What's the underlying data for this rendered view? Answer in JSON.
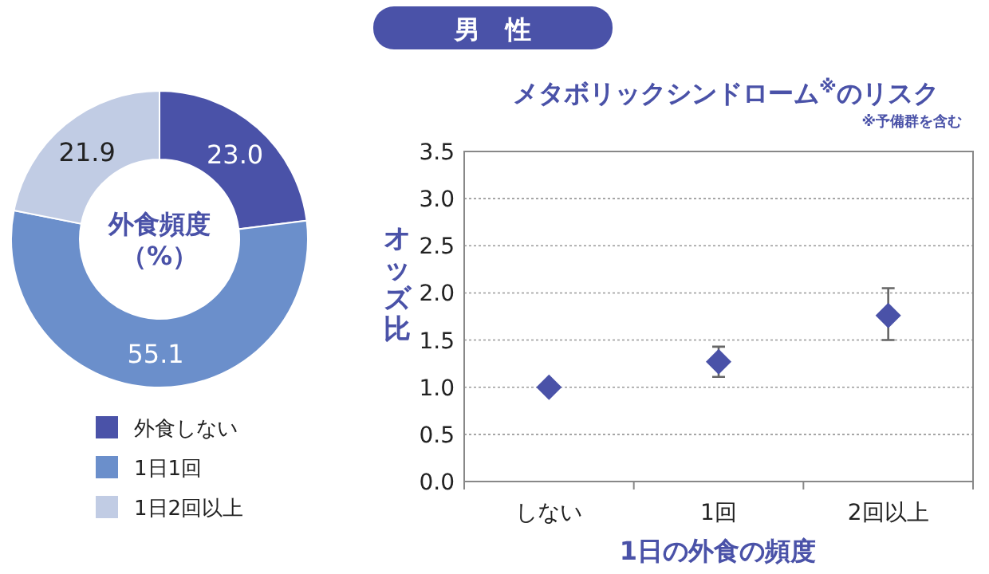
{
  "chart_data": [
    {
      "type": "donut",
      "title": "男　性",
      "annotations": [
        "外食頻度",
        "（%）"
      ],
      "categories": [
        "外食しない",
        "1日1回",
        "1日2回以上"
      ],
      "values": [
        23.0,
        55.1,
        21.9
      ],
      "value_labels": [
        "23.0",
        "55.1",
        "21.9"
      ],
      "colors": [
        "#4a52a8",
        "#6b8fcb",
        "#c1cce4"
      ],
      "legend": "bottom"
    },
    {
      "type": "scatter",
      "title": "メタボリックシンドローム$^{※}$のリスク",
      "subtitle": "※予備群を含む",
      "xlabel": "1日の外食の頻度",
      "ylabel": "オッズ比",
      "categories": [
        "しない",
        "1回",
        "2回以上"
      ],
      "series": [
        {
          "color": "#4a52a8",
          "values": [
            1.0,
            1.27,
            1.76
          ],
          "errors": [
            null,
            [
              1.11,
              1.43
            ],
            [
              1.5,
              2.05
            ]
          ]
        }
      ],
      "marker": "diamond",
      "grid": "y",
      "ylim": [
        0,
        3.5
      ],
      "yticks": [
        {
          "value": 0,
          "label": "0.0"
        },
        {
          "value": 0.5,
          "label": "0.5"
        },
        {
          "value": 1,
          "label": "1.0"
        },
        {
          "value": 1.5,
          "label": "1.5"
        },
        {
          "value": 2,
          "label": "2.0"
        },
        {
          "value": 2.5,
          "label": "2.5"
        },
        {
          "value": 3,
          "label": "3.0"
        },
        {
          "value": 3.5,
          "label": "3.5"
        }
      ]
    }
  ]
}
